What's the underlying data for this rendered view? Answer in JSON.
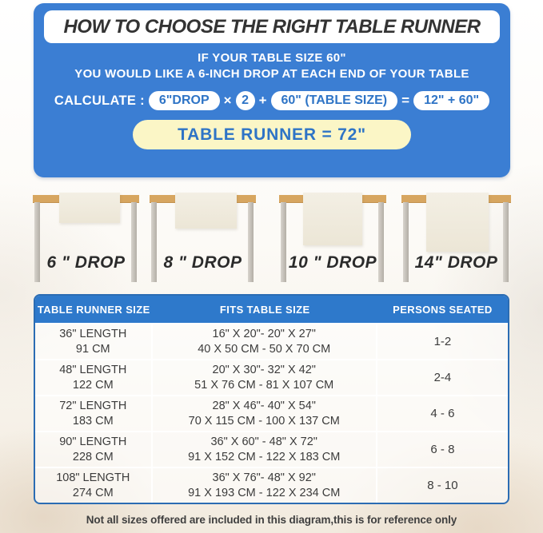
{
  "header": {
    "title": "HOW TO CHOOSE THE RIGHT TABLE RUNNER",
    "subtitle_line1": "IF YOUR TABLE SIZE 60\"",
    "subtitle_line2": "YOU WOULD LIKE A 6-INCH DROP AT EACH END OF YOUR TABLE",
    "calc": {
      "label": "CALCULATE :",
      "drop_pill": "6\"DROP",
      "times": "×",
      "multiplier": "2",
      "plus": "+",
      "table_size_pill": "60\" (TABLE SIZE)",
      "equals": "=",
      "sum_pill": "12\" + 60\"",
      "result": "TABLE RUNNER = 72\""
    }
  },
  "figures": [
    {
      "label": "6 \" DROP"
    },
    {
      "label": "8 \" DROP"
    },
    {
      "label": "10 \" DROP"
    },
    {
      "label": "14\" DROP"
    }
  ],
  "size_table": {
    "columns": [
      "TABLE RUNNER SIZE",
      "FITS TABLE SIZE",
      "PERSONS SEATED"
    ],
    "rows": [
      {
        "runner_in": "36\" LENGTH",
        "runner_cm": "91 CM",
        "fits_in": "16\" X 20\"- 20\" X 27\"",
        "fits_cm": "40 X 50 CM - 50 X 70 CM",
        "persons": "1-2"
      },
      {
        "runner_in": "48\" LENGTH",
        "runner_cm": "122 CM",
        "fits_in": "20\" X 30\"- 32\" X 42\"",
        "fits_cm": "51 X 76 CM - 81 X 107 CM",
        "persons": "2-4"
      },
      {
        "runner_in": "72\" LENGTH",
        "runner_cm": "183 CM",
        "fits_in": "28\" X 46\"- 40\" X 54\"",
        "fits_cm": "70 X 115 CM - 100 X 137 CM",
        "persons": "4 - 6"
      },
      {
        "runner_in": "90\" LENGTH",
        "runner_cm": "228 CM",
        "fits_in": "36\" X 60\" - 48\" X 72\"",
        "fits_cm": "91 X 152 CM - 122 X 183 CM",
        "persons": "6 - 8"
      },
      {
        "runner_in": "108\" LENGTH",
        "runner_cm": "274 CM",
        "fits_in": "36\" X 76\"- 48\" X 92\"",
        "fits_cm": "91 X 193 CM - 122 X 234 CM",
        "persons": "8 - 10"
      }
    ]
  },
  "footnote": "Not all sizes offered are included in this diagram,this is for reference only",
  "colors": {
    "panel_blue": "#3b7ed3",
    "table_header_blue": "#2e79cb",
    "table_border_blue": "#2b6cb3",
    "pill_text_blue": "#2e74c6",
    "result_yellow": "#fbf6c6",
    "wood": "#d7a660",
    "leg_grey": "#bdb8b0",
    "runner_cream": "#f1ece0"
  }
}
